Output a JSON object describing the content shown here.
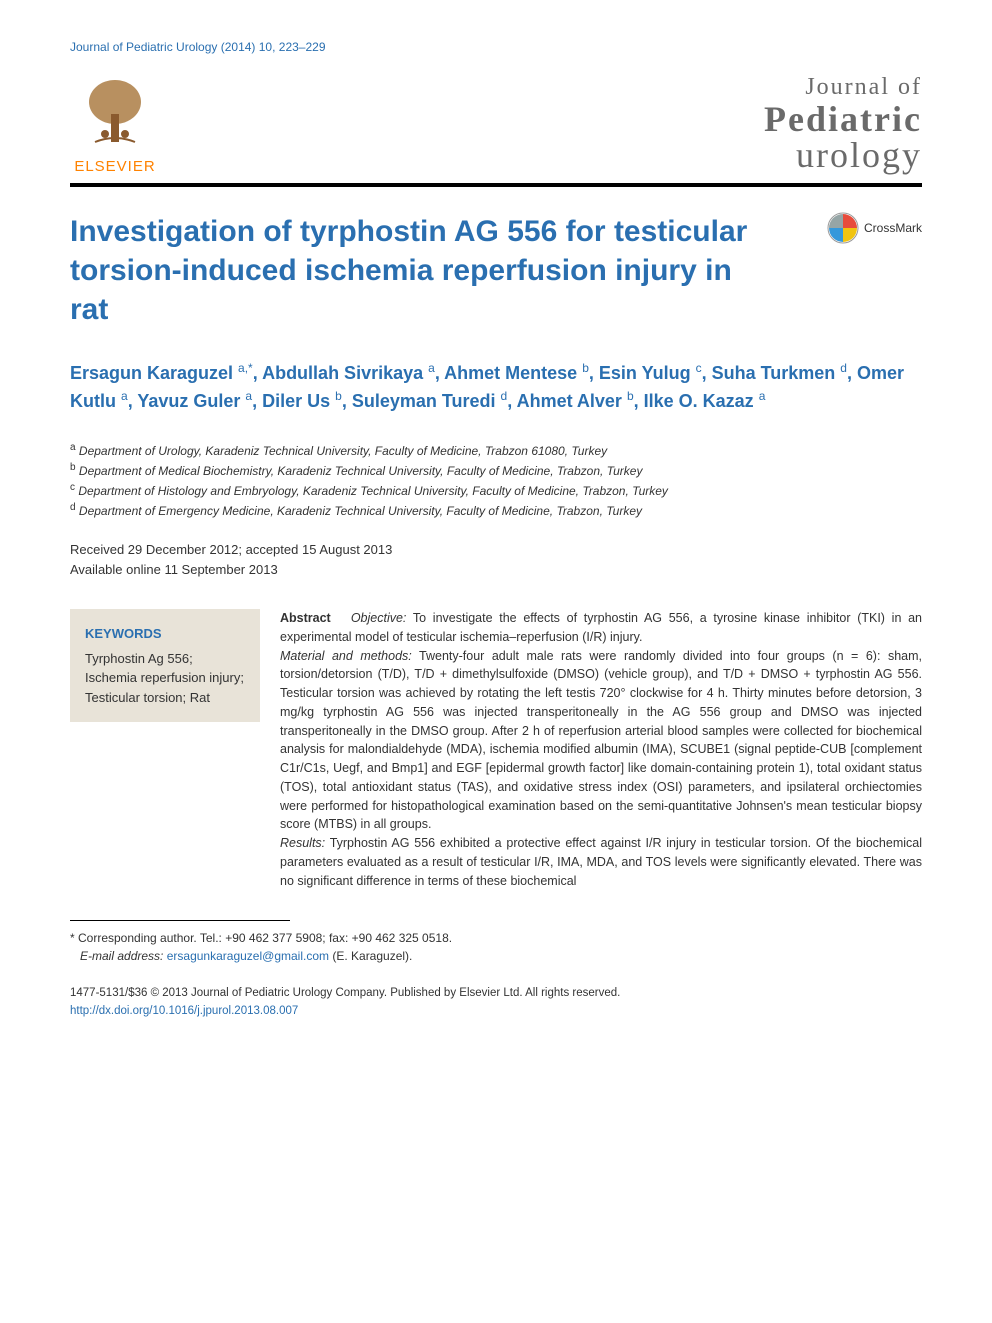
{
  "journal_ref": "Journal of Pediatric Urology (2014) 10, 223–229",
  "publisher": {
    "name": "ELSEVIER",
    "tree_color": "#a8703a",
    "label_color": "#ff8200"
  },
  "journal_title": {
    "line1": "Journal of",
    "line2": "Pediatric",
    "line3": "urology",
    "color": "#6a6a6a"
  },
  "crossmark_label": "CrossMark",
  "article_title": "Investigation of tyrphostin AG 556 for testicular torsion-induced ischemia reperfusion injury in rat",
  "authors_html": "Ersagun Karaguzel <sup>a,*</sup>, Abdullah Sivrikaya <sup>a</sup>, Ahmet Mentese <sup>b</sup>, Esin Yulug <sup>c</sup>, Suha Turkmen <sup>d</sup>, Omer Kutlu <sup>a</sup>, Yavuz Guler <sup>a</sup>, Diler Us <sup>b</sup>, Suleyman Turedi <sup>d</sup>, Ahmet Alver <sup>b</sup>, Ilke O. Kazaz <sup>a</sup>",
  "affiliations": [
    {
      "sup": "a",
      "text": "Department of Urology, Karadeniz Technical University, Faculty of Medicine, Trabzon 61080, Turkey"
    },
    {
      "sup": "b",
      "text": "Department of Medical Biochemistry, Karadeniz Technical University, Faculty of Medicine, Trabzon, Turkey"
    },
    {
      "sup": "c",
      "text": "Department of Histology and Embryology, Karadeniz Technical University, Faculty of Medicine, Trabzon, Turkey"
    },
    {
      "sup": "d",
      "text": "Department of Emergency Medicine, Karadeniz Technical University, Faculty of Medicine, Trabzon, Turkey"
    }
  ],
  "dates": {
    "received_accepted": "Received 29 December 2012; accepted 15 August 2013",
    "online": "Available online 11 September 2013"
  },
  "keywords": {
    "heading": "KEYWORDS",
    "items": "Tyrphostin Ag 556; Ischemia reperfusion injury; Testicular torsion; Rat"
  },
  "abstract": {
    "label": "Abstract",
    "objective_label": "Objective:",
    "objective": " To investigate the effects of tyrphostin AG 556, a tyrosine kinase inhibitor (TKI) in an experimental model of testicular ischemia–reperfusion (I/R) injury.",
    "methods_label": "Material and methods:",
    "methods": " Twenty-four adult male rats were randomly divided into four groups (n = 6): sham, torsion/detorsion (T/D), T/D + dimethylsulfoxide (DMSO) (vehicle group), and T/D + DMSO + tyrphostin AG 556. Testicular torsion was achieved by rotating the left testis 720° clockwise for 4 h. Thirty minutes before detorsion, 3 mg/kg tyrphostin AG 556 was injected transperitoneally in the AG 556 group and DMSO was injected transperitoneally in the DMSO group. After 2 h of reperfusion arterial blood samples were collected for biochemical analysis for malondialdehyde (MDA), ischemia modified albumin (IMA), SCUBE1 (signal peptide-CUB [complement C1r/C1s, Uegf, and Bmp1] and EGF [epidermal growth factor] like domain-containing protein 1), total oxidant status (TOS), total antioxidant status (TAS), and oxidative stress index (OSI) parameters, and ipsilateral orchiectomies were performed for histopathological examination based on the semi-quantitative Johnsen's mean testicular biopsy score (MTBS) in all groups.",
    "results_label": "Results:",
    "results": " Tyrphostin AG 556 exhibited a protective effect against I/R injury in testicular torsion. Of the biochemical parameters evaluated as a result of testicular I/R, IMA, MDA, and TOS levels were significantly elevated. There was no significant difference in terms of these biochemical"
  },
  "footnote": {
    "corresponding": "* Corresponding author. Tel.: +90 462 377 5908; fax: +90 462 325 0518.",
    "email_label": "E-mail address:",
    "email": "ersagunkaraguzel@gmail.com",
    "email_author": "(E. Karaguzel)."
  },
  "doi": {
    "copyright": "1477-5131/$36 © 2013 Journal of Pediatric Urology Company. Published by Elsevier Ltd. All rights reserved.",
    "link": "http://dx.doi.org/10.1016/j.jpurol.2013.08.007"
  },
  "colors": {
    "link_blue": "#2a6fb0",
    "keyword_bg": "#e8e3d8",
    "rule_black": "#000000"
  }
}
